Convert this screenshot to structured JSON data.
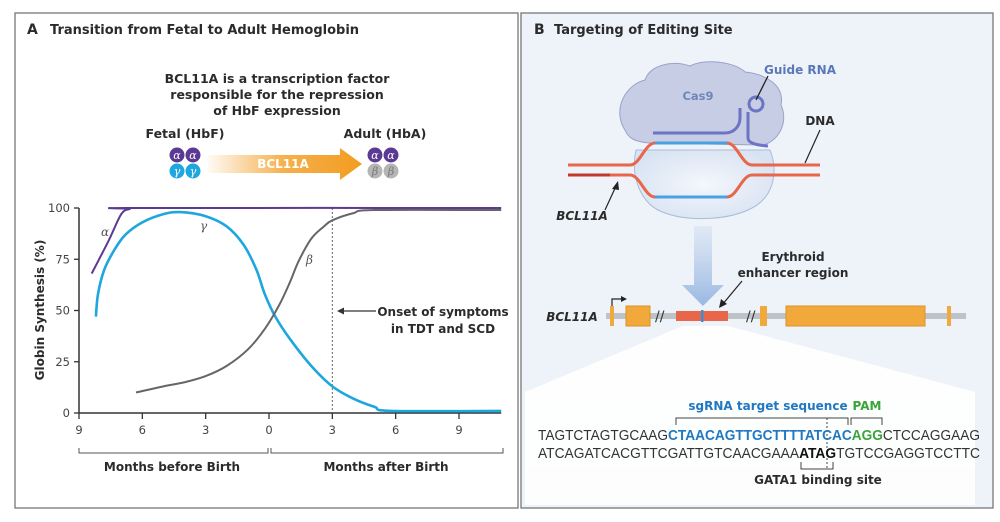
{
  "panel_a": {
    "letter": "A",
    "title": "Transition from Fetal to Adult Hemoglobin",
    "description_lines": [
      "BCL11A is a transcription factor",
      "responsible for the repression",
      "of HbF expression"
    ],
    "fetal_label": "Fetal (HbF)",
    "adult_label": "Adult (HbA)",
    "arrow_label": "BCL11A",
    "subunits": {
      "alpha": "α",
      "gamma": "γ",
      "beta": "β"
    },
    "colors": {
      "alpha": "#5b3a94",
      "gamma": "#1ea6df",
      "beta": "#b5b5b5",
      "arrow": "#f39c1f"
    },
    "annotation_lines": [
      "Onset of symptoms",
      "in TDT and SCD"
    ],
    "period_labels": [
      "Months before Birth",
      "Months after Birth"
    ]
  },
  "chart_data": {
    "type": "line",
    "title": "",
    "xlabel": "",
    "ylabel": "Globin Synthesis (%)",
    "xlim": [
      -9,
      11
    ],
    "ylim": [
      0,
      100
    ],
    "x_ticks": [
      -9,
      -6,
      -3,
      0,
      3,
      6,
      9
    ],
    "x_tick_labels": [
      "9",
      "6",
      "3",
      "0",
      "3",
      "6",
      "9"
    ],
    "y_ticks": [
      0,
      25,
      50,
      75,
      100
    ],
    "y_tick_labels": [
      "0",
      "25",
      "50",
      "75",
      "100"
    ],
    "grid": false,
    "vertical_marker_x": 3,
    "series": [
      {
        "name": "α",
        "color": "#5b3a94",
        "points": [
          [
            -8.4,
            68
          ],
          [
            -7.6,
            84
          ],
          [
            -7,
            97
          ],
          [
            -6.6,
            99.5
          ],
          [
            -6.2,
            100
          ],
          [
            11,
            100
          ]
        ]
      },
      {
        "name": "γ",
        "color": "#1ea6df",
        "points": [
          [
            -8.2,
            47
          ],
          [
            -8.1,
            58
          ],
          [
            -7.8,
            70
          ],
          [
            -7.3,
            80
          ],
          [
            -6.8,
            87
          ],
          [
            -6,
            93
          ],
          [
            -5,
            97
          ],
          [
            -4.2,
            98
          ],
          [
            -3,
            96
          ],
          [
            -2,
            91
          ],
          [
            -1.2,
            82
          ],
          [
            -0.6,
            70
          ],
          [
            -0.2,
            58
          ],
          [
            0.3,
            47
          ],
          [
            1,
            36
          ],
          [
            2,
            23
          ],
          [
            3,
            13
          ],
          [
            4,
            7
          ],
          [
            5,
            3
          ],
          [
            5.8,
            1
          ],
          [
            11,
            1
          ]
        ]
      },
      {
        "name": "β",
        "color": "#666666",
        "points": [
          [
            -6.3,
            10
          ],
          [
            -5,
            13
          ],
          [
            -4,
            15
          ],
          [
            -3,
            18
          ],
          [
            -2,
            23
          ],
          [
            -1,
            31
          ],
          [
            -0.2,
            41
          ],
          [
            0.5,
            53
          ],
          [
            1,
            64
          ],
          [
            1.4,
            74
          ],
          [
            2,
            85
          ],
          [
            2.6,
            91
          ],
          [
            3,
            94
          ],
          [
            4,
            97.5
          ],
          [
            5,
            99
          ],
          [
            11,
            99
          ]
        ]
      }
    ]
  },
  "panel_b": {
    "letter": "B",
    "title": "Targeting of Editing Site",
    "cas9_label": "Cas9",
    "guide_rna_label": "Guide RNA",
    "dna_label": "DNA",
    "gene_label": "BCL11A",
    "enhancer_label_lines": [
      "Erythroid",
      "enhancer region"
    ],
    "sgrna_label": "sgRNA target sequence",
    "pam_label": "PAM",
    "gata1_label": "GATA1 binding site",
    "colors": {
      "sgrna": "#1f78c1",
      "pam": "#3aa33a",
      "dna": "#e8664a",
      "exon": "#f2a93b",
      "background": "#eef3f9"
    },
    "sequence_top": [
      "TAGTCTAGTGCAAG",
      "CTAACAGTTGCTTTTATCAC",
      "AGG",
      "CTCCAGGAAG"
    ],
    "sequence_bottom": [
      "ATCAGATCACGTTCGATTGTCAACGAAA",
      "ATAG",
      "TGTCCGAGGTCCTTC"
    ]
  }
}
